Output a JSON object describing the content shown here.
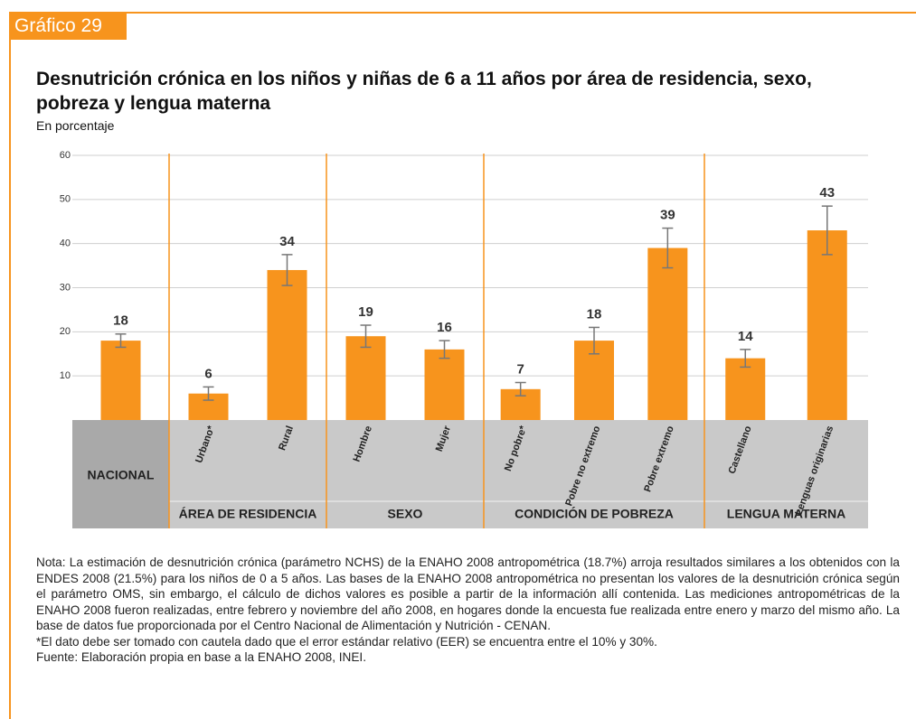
{
  "badge": "Gráfico 29",
  "chart_data": {
    "type": "bar",
    "title": "Desnutrición crónica en los niños y niñas de 6 a 11 años por área de residencia, sexo, pobreza y lengua materna",
    "subtitle": "En porcentaje",
    "color": "#f7941d",
    "ylim": [
      0,
      60
    ],
    "yticks": [
      10,
      20,
      30,
      40,
      50,
      60
    ],
    "grid": true,
    "groups": [
      {
        "categories": [
          "NACIONAL"
        ],
        "values": [
          18
        ],
        "errors": [
          1.5
        ]
      },
      {
        "name": "ÁREA DE RESIDENCIA",
        "categories": [
          "Urbano*",
          "Rural"
        ],
        "values": [
          6,
          34
        ],
        "errors": [
          1.5,
          3.5
        ]
      },
      {
        "name": "SEXO",
        "categories": [
          "Hombre",
          "Mujer"
        ],
        "values": [
          19,
          16
        ],
        "errors": [
          2.5,
          2
        ]
      },
      {
        "name": "CONDICIÓN DE POBREZA",
        "categories": [
          "No pobre*",
          "Pobre no extremo",
          "Pobre extremo"
        ],
        "values": [
          7,
          18,
          39
        ],
        "errors": [
          1.5,
          3,
          4.5
        ]
      },
      {
        "name": "LENGUA MATERNA",
        "categories": [
          "Castellano",
          "Lenguas originarias"
        ],
        "values": [
          14,
          43
        ],
        "errors": [
          2,
          5.5
        ]
      }
    ]
  },
  "notes": [
    "Nota: La estimación de desnutrición crónica (parámetro NCHS) de la ENAHO 2008 antropométrica (18.7%) arroja resultados similares a los obtenidos con la ENDES 2008 (21.5%) para los niños de 0 a 5 años. Las bases de la ENAHO 2008 antropométrica no presentan los valores de la desnutrición crónica según el parámetro OMS, sin embargo, el cálculo de dichos valores es posible a partir de la información allí contenida. Las mediciones antropométricas de la ENAHO 2008 fueron realizadas, entre febrero y noviembre del año 2008, en hogares donde la encuesta fue realizada entre enero y marzo del mismo año. La base de datos fue proporcionada por el Centro Nacional de Alimentación y Nutrición - CENAN.",
    "*El dato debe ser tomado con cautela dado que el error estándar relativo (EER) se encuentra entre el 10% y 30%.",
    "Fuente: Elaboración propia en base a la ENAHO 2008, INEI."
  ]
}
